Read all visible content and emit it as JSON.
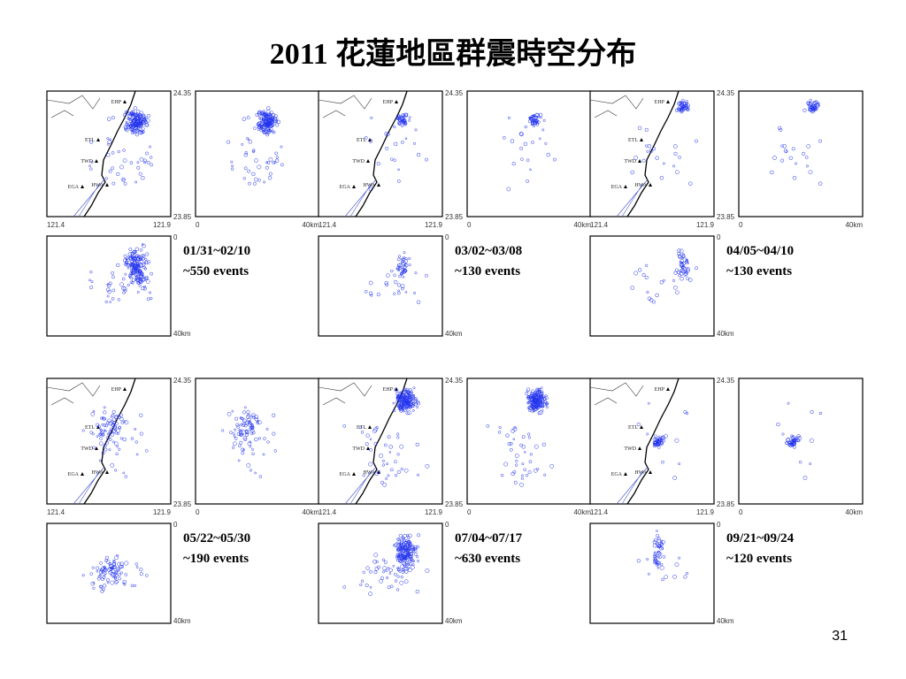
{
  "title": "2011 花蓮地區群震時空分布",
  "page_number": "31",
  "map_labels": {
    "lat_top": "24.35",
    "lat_bottom": "23.85",
    "lon_left": "121.4",
    "lon_right": "121.9",
    "dist_zero": "0",
    "dist_end": "40km"
  },
  "stations": [
    "EHP",
    "ETL",
    "TWD",
    "EGA",
    "HWA"
  ],
  "panels": [
    {
      "dates": "01/31~02/10",
      "events": "~550 events"
    },
    {
      "dates": "03/02~03/08",
      "events": "~130 events"
    },
    {
      "dates": "04/05~04/10",
      "events": "~130 events"
    },
    {
      "dates": "05/22~05/30",
      "events": "~190 events"
    },
    {
      "dates": "07/04~07/17",
      "events": "~630 events"
    },
    {
      "dates": "09/21~09/24",
      "events": "~120 events"
    }
  ]
}
